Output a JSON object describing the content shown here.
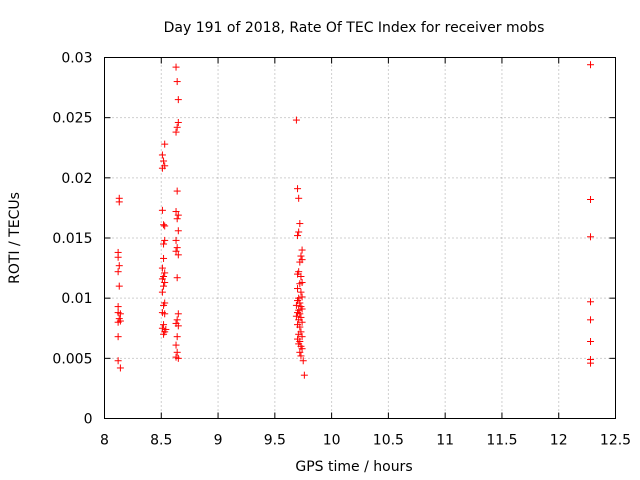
{
  "chart_data": {
    "type": "scatter",
    "title": "Day 191 of 2018, Rate Of TEC Index for receiver mobs",
    "xlabel": "GPS time / hours",
    "ylabel": "ROTI / TECUs",
    "xlim": [
      8,
      12.5
    ],
    "ylim": [
      0,
      0.03
    ],
    "xticks": [
      8,
      8.5,
      9,
      9.5,
      10,
      10.5,
      11,
      11.5,
      12,
      12.5
    ],
    "xtick_labels": [
      "8",
      "8.5",
      "9",
      "9.5",
      "10",
      "10.5",
      "11",
      "11.5",
      "12",
      "12.5"
    ],
    "yticks": [
      0,
      0.005,
      0.01,
      0.015,
      0.02,
      0.025,
      0.03
    ],
    "ytick_labels": [
      "0",
      "0.005",
      "0.01",
      "0.015",
      "0.02",
      "0.025",
      "0.03"
    ],
    "grid": true,
    "marker": "+",
    "color": "#ff0000",
    "series": [
      {
        "name": "ROTI",
        "points": [
          [
            8.13,
            0.0183
          ],
          [
            8.13,
            0.018
          ],
          [
            8.12,
            0.0138
          ],
          [
            8.12,
            0.0134
          ],
          [
            8.13,
            0.0127
          ],
          [
            8.12,
            0.0122
          ],
          [
            8.13,
            0.011
          ],
          [
            8.12,
            0.0093
          ],
          [
            8.12,
            0.0088
          ],
          [
            8.14,
            0.0087
          ],
          [
            8.13,
            0.0083
          ],
          [
            8.12,
            0.008
          ],
          [
            8.14,
            0.0081
          ],
          [
            8.12,
            0.0068
          ],
          [
            8.12,
            0.0048
          ],
          [
            8.14,
            0.0042
          ],
          [
            8.53,
            0.0228
          ],
          [
            8.51,
            0.0219
          ],
          [
            8.52,
            0.0214
          ],
          [
            8.53,
            0.021
          ],
          [
            8.51,
            0.0208
          ],
          [
            8.51,
            0.0173
          ],
          [
            8.52,
            0.0161
          ],
          [
            8.53,
            0.016
          ],
          [
            8.53,
            0.0148
          ],
          [
            8.52,
            0.0145
          ],
          [
            8.52,
            0.0133
          ],
          [
            8.51,
            0.0125
          ],
          [
            8.53,
            0.0121
          ],
          [
            8.52,
            0.0118
          ],
          [
            8.51,
            0.0116
          ],
          [
            8.53,
            0.0113
          ],
          [
            8.52,
            0.011
          ],
          [
            8.51,
            0.0105
          ],
          [
            8.53,
            0.0096
          ],
          [
            8.52,
            0.0094
          ],
          [
            8.51,
            0.0088
          ],
          [
            8.53,
            0.0087
          ],
          [
            8.52,
            0.0078
          ],
          [
            8.51,
            0.0075
          ],
          [
            8.53,
            0.0072
          ],
          [
            8.52,
            0.007
          ],
          [
            8.54,
            0.0074
          ],
          [
            8.63,
            0.0292
          ],
          [
            8.64,
            0.028
          ],
          [
            8.65,
            0.0265
          ],
          [
            8.65,
            0.0246
          ],
          [
            8.64,
            0.0242
          ],
          [
            8.63,
            0.0238
          ],
          [
            8.64,
            0.0189
          ],
          [
            8.63,
            0.0172
          ],
          [
            8.65,
            0.0169
          ],
          [
            8.64,
            0.0166
          ],
          [
            8.65,
            0.0156
          ],
          [
            8.63,
            0.0148
          ],
          [
            8.64,
            0.0142
          ],
          [
            8.63,
            0.0139
          ],
          [
            8.65,
            0.0136
          ],
          [
            8.64,
            0.0117
          ],
          [
            8.65,
            0.0087
          ],
          [
            8.64,
            0.0082
          ],
          [
            8.63,
            0.0079
          ],
          [
            8.65,
            0.0077
          ],
          [
            8.64,
            0.0068
          ],
          [
            8.63,
            0.0061
          ],
          [
            8.64,
            0.0055
          ],
          [
            8.63,
            0.0051
          ],
          [
            8.65,
            0.005
          ],
          [
            9.69,
            0.0248
          ],
          [
            9.7,
            0.0191
          ],
          [
            9.71,
            0.0183
          ],
          [
            9.72,
            0.0162
          ],
          [
            9.71,
            0.0155
          ],
          [
            9.7,
            0.0152
          ],
          [
            9.74,
            0.014
          ],
          [
            9.73,
            0.0135
          ],
          [
            9.74,
            0.0132
          ],
          [
            9.72,
            0.013
          ],
          [
            9.71,
            0.0122
          ],
          [
            9.7,
            0.012
          ],
          [
            9.73,
            0.0118
          ],
          [
            9.74,
            0.0113
          ],
          [
            9.72,
            0.0112
          ],
          [
            9.7,
            0.0108
          ],
          [
            9.73,
            0.0105
          ],
          [
            9.74,
            0.0101
          ],
          [
            9.71,
            0.01
          ],
          [
            9.7,
            0.0098
          ],
          [
            9.72,
            0.0096
          ],
          [
            9.69,
            0.0094
          ],
          [
            9.73,
            0.0093
          ],
          [
            9.74,
            0.0091
          ],
          [
            9.71,
            0.009
          ],
          [
            9.7,
            0.0088
          ],
          [
            9.72,
            0.0087
          ],
          [
            9.69,
            0.0085
          ],
          [
            9.73,
            0.0084
          ],
          [
            9.71,
            0.0082
          ],
          [
            9.74,
            0.008
          ],
          [
            9.7,
            0.0078
          ],
          [
            9.72,
            0.0076
          ],
          [
            9.73,
            0.0072
          ],
          [
            9.71,
            0.007
          ],
          [
            9.74,
            0.0068
          ],
          [
            9.7,
            0.0066
          ],
          [
            9.72,
            0.0064
          ],
          [
            9.71,
            0.0062
          ],
          [
            9.73,
            0.006
          ],
          [
            9.74,
            0.0058
          ],
          [
            9.72,
            0.0055
          ],
          [
            9.73,
            0.0052
          ],
          [
            9.75,
            0.0048
          ],
          [
            9.76,
            0.0036
          ],
          [
            12.28,
            0.0294
          ],
          [
            12.28,
            0.0182
          ],
          [
            12.28,
            0.0151
          ],
          [
            12.28,
            0.0097
          ],
          [
            12.28,
            0.0082
          ],
          [
            12.28,
            0.0064
          ],
          [
            12.28,
            0.0049
          ],
          [
            12.28,
            0.0046
          ]
        ]
      }
    ]
  }
}
